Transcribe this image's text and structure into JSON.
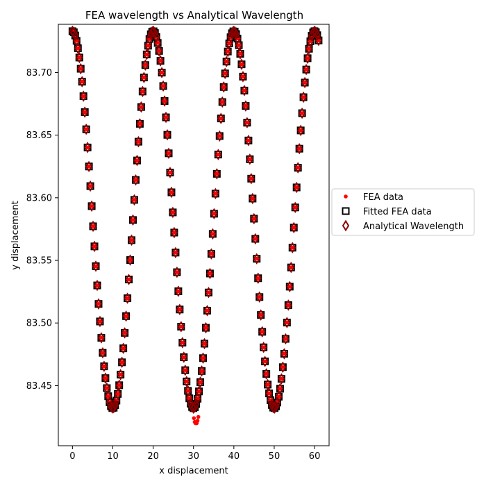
{
  "chart_data": {
    "type": "scatter",
    "title": "FEA wavelength vs Analytical Wavelength",
    "xlabel": "x displacement",
    "ylabel": "y displacement",
    "xlim": [
      -3.5,
      63.6
    ],
    "ylim": [
      83.402,
      83.7385
    ],
    "x_ticks": [
      0,
      10,
      20,
      30,
      40,
      50,
      60
    ],
    "x_tick_labels": [
      "0",
      "10",
      "20",
      "30",
      "40",
      "50",
      "60"
    ],
    "y_ticks": [
      83.45,
      83.5,
      83.55,
      83.6,
      83.65,
      83.7
    ],
    "y_tick_labels": [
      "83.45",
      "83.50",
      "83.55",
      "83.60",
      "83.65",
      "83.70"
    ],
    "grid": false,
    "legend_position": "center-right-outside",
    "curve_model": {
      "form": "y = mean + amplitude * cos(2*pi*x/wavelength)",
      "mean": 83.5825,
      "amplitude": 0.1505,
      "wavelength": 20,
      "x_range": [
        0,
        61
      ],
      "points": 180
    },
    "series": [
      {
        "name": "FEA data",
        "marker": "circle",
        "color": "#ff0000",
        "edge_color": "#ff0000",
        "extra_points": [
          [
            30.3,
            83.421
          ],
          [
            30.5,
            83.42
          ],
          [
            30.8,
            83.42
          ],
          [
            31.0,
            83.422
          ],
          [
            30.1,
            83.424
          ],
          [
            31.2,
            83.425
          ]
        ]
      },
      {
        "name": "Fitted FEA data",
        "marker": "square",
        "color": "none",
        "edge_color": "#000000"
      },
      {
        "name": "Analytical Wavelength",
        "marker": "diamond",
        "color": "none",
        "edge_color": "#8b0000"
      }
    ]
  }
}
